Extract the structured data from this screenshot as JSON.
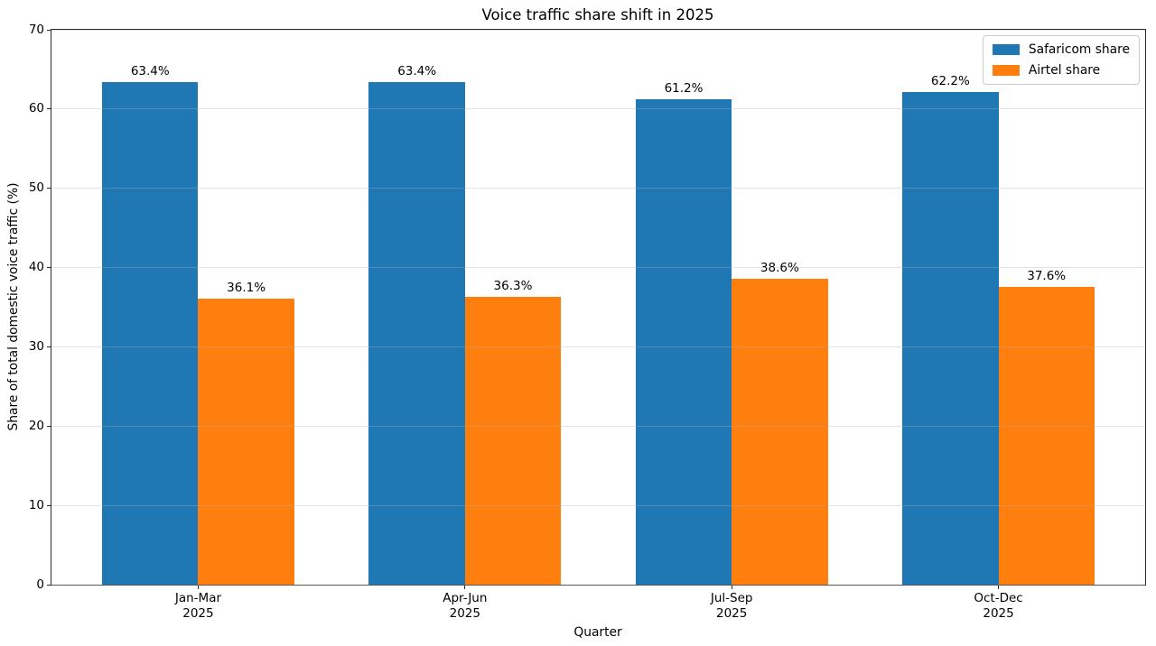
{
  "chart_data": {
    "type": "bar",
    "title": "Voice traffic share shift in 2025",
    "xlabel": "Quarter",
    "ylabel": "Share of total domestic voice traffic (%)",
    "categories": [
      [
        "Jan-Mar",
        "2025"
      ],
      [
        "Apr-Jun",
        "2025"
      ],
      [
        "Jul-Sep",
        "2025"
      ],
      [
        "Oct-Dec",
        "2025"
      ]
    ],
    "series": [
      {
        "name": "Safaricom share",
        "color": "#1f77b4",
        "values": [
          63.4,
          63.4,
          61.2,
          62.2
        ],
        "data_labels": [
          "63.4%",
          "63.4%",
          "61.2%",
          "62.2%"
        ]
      },
      {
        "name": "Airtel share",
        "color": "#ff7f0e",
        "values": [
          36.1,
          36.3,
          38.6,
          37.6
        ],
        "data_labels": [
          "36.1%",
          "36.3%",
          "38.6%",
          "37.6%"
        ]
      }
    ],
    "ylim": [
      0,
      70
    ],
    "yticks": [
      "0",
      "10",
      "20",
      "30",
      "40",
      "50",
      "60",
      "70"
    ],
    "grid": "horizontal-only, light gray, drawn faintly over bars",
    "legend_position": "upper right",
    "colors": {
      "grid": "#e6e6e6",
      "spine": "#2a2a2a",
      "text": "#000000",
      "background": "#ffffff"
    }
  }
}
